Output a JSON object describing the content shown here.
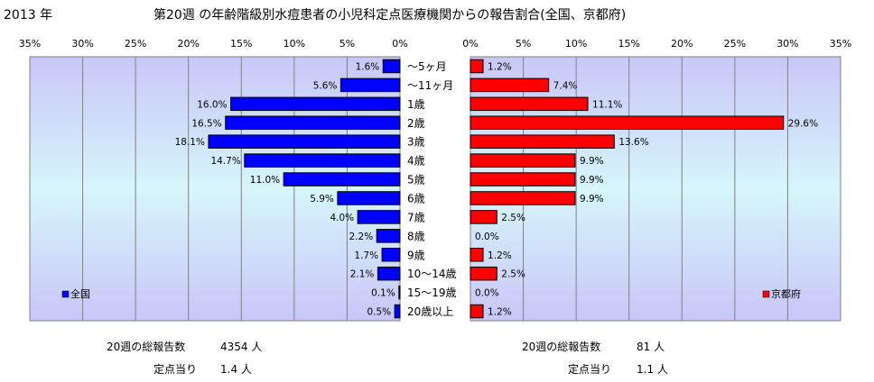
{
  "header": {
    "year": "2013 年",
    "title": "第20週 の年齢階級別水痘患者の小児科定点医療機関からの報告割合(全国、京都府)"
  },
  "colors": {
    "national": "#0000ff",
    "kyoto": "#ff0000",
    "grid": "#808080"
  },
  "chart_data": {
    "type": "bar",
    "categories": [
      "〜5ヶ月",
      "〜11ヶ月",
      "1歳",
      "2歳",
      "3歳",
      "4歳",
      "5歳",
      "6歳",
      "7歳",
      "8歳",
      "9歳",
      "10〜14歳",
      "15〜19歳",
      "20歳以上"
    ],
    "series": [
      {
        "name": "全国",
        "values": [
          1.6,
          5.6,
          16.0,
          16.5,
          18.1,
          14.7,
          11.0,
          5.9,
          4.0,
          2.2,
          1.7,
          2.1,
          0.1,
          0.5
        ],
        "labels": [
          "1.6%",
          "5.6%",
          "16.0%",
          "16.5%",
          "18.1%",
          "14.7%",
          "11.0%",
          "5.9%",
          "4.0%",
          "2.2%",
          "1.7%",
          "2.1%",
          "0.1%",
          "0.5%"
        ]
      },
      {
        "name": "京都府",
        "values": [
          1.2,
          7.4,
          11.1,
          29.6,
          13.6,
          9.9,
          9.9,
          9.9,
          2.5,
          0.0,
          1.2,
          2.5,
          0.0,
          1.2
        ],
        "labels": [
          "1.2%",
          "7.4%",
          "11.1%",
          "29.6%",
          "13.6%",
          "9.9%",
          "9.9%",
          "9.9%",
          "2.5%",
          "0.0%",
          "1.2%",
          "2.5%",
          "0.0%",
          "1.2%"
        ]
      }
    ],
    "xlim": [
      0,
      35
    ],
    "ticks_left": [
      "35%",
      "30%",
      "25%",
      "20%",
      "15%",
      "10%",
      "5%",
      "0%"
    ],
    "ticks_right": [
      "0%",
      "5%",
      "10%",
      "15%",
      "20%",
      "25%",
      "30%",
      "35%"
    ],
    "legend_left": "全国",
    "legend_right": "京都府"
  },
  "footer": {
    "left": {
      "reports_label": "20週の総報告数",
      "reports_value": "4354 人",
      "per_label": "定点当り",
      "per_value": "1.4 人"
    },
    "right": {
      "reports_label": "20週の総報告数",
      "reports_value": "81 人",
      "per_label": "定点当り",
      "per_value": "1.1 人"
    }
  }
}
